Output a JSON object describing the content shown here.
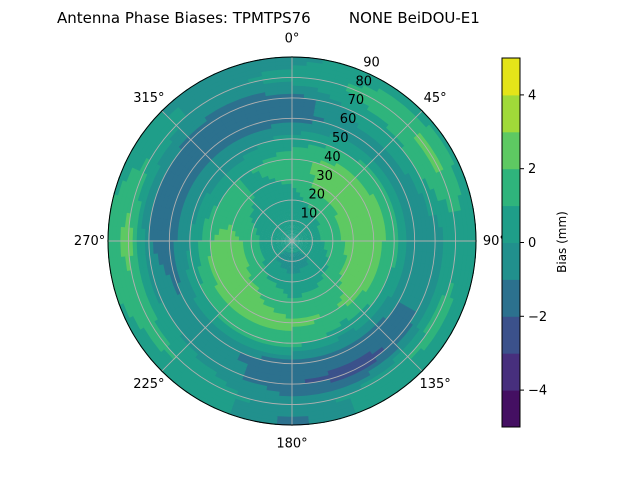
{
  "chart_data": {
    "type": "heatmap",
    "subtype": "polar-filled-contour",
    "title": "Antenna Phase Biases: TPMTPS76        NONE BeiDOU-E1",
    "theta_direction": "clockwise",
    "theta_zero": "north",
    "theta_ticks": [
      "0°",
      "45°",
      "90°",
      "135°",
      "180°",
      "225°",
      "270°",
      "315°"
    ],
    "theta_tick_values": [
      0,
      45,
      90,
      135,
      180,
      225,
      270,
      315
    ],
    "r_ticks": [
      "10",
      "20",
      "30",
      "40",
      "50",
      "60",
      "70",
      "80",
      "90"
    ],
    "r_tick_values": [
      10,
      20,
      30,
      40,
      50,
      60,
      70,
      80,
      90
    ],
    "rlim": [
      0,
      90
    ],
    "grid": true,
    "azimuth": [
      0,
      30,
      60,
      90,
      120,
      150,
      180,
      210,
      240,
      270,
      300,
      330
    ],
    "zenith": [
      0,
      10,
      20,
      30,
      40,
      50,
      60,
      70,
      80,
      90
    ],
    "values": [
      [
        0.5,
        0.5,
        0.5,
        0.5,
        0.5,
        0.5,
        0.5,
        0.5,
        0.5,
        0.5,
        0.5,
        0.5
      ],
      [
        0.5,
        0.5,
        0.5,
        0.5,
        0.3,
        -0.3,
        -0.5,
        -0.3,
        0.3,
        0.5,
        0.5,
        0.5
      ],
      [
        0.5,
        1.2,
        1.5,
        1.5,
        1.0,
        0.5,
        0.3,
        0.8,
        1.5,
        1.5,
        0.8,
        0.5
      ],
      [
        1.2,
        2.5,
        2.5,
        2.5,
        2.2,
        1.5,
        1.2,
        2.0,
        2.5,
        2.5,
        1.5,
        0.8
      ],
      [
        1.5,
        2.5,
        2.5,
        2.5,
        2.5,
        2.0,
        2.2,
        2.5,
        2.5,
        2.0,
        1.0,
        1.0
      ],
      [
        0.5,
        1.0,
        1.5,
        1.5,
        1.0,
        0.5,
        1.5,
        1.5,
        1.0,
        0.0,
        -0.5,
        -0.5
      ],
      [
        -1.5,
        -0.5,
        -1.0,
        -1.0,
        -1.0,
        -1.5,
        -1.5,
        -1.0,
        -1.0,
        -1.5,
        -1.5,
        -1.5
      ],
      [
        -1.5,
        0.5,
        1.0,
        -0.5,
        -1.0,
        -2.5,
        -2.0,
        -0.5,
        0.0,
        -1.0,
        -1.0,
        -1.5
      ],
      [
        0.5,
        1.5,
        2.5,
        0.5,
        1.5,
        0.5,
        -0.5,
        0.5,
        1.5,
        2.5,
        1.0,
        -0.5
      ],
      [
        -0.5,
        0.5,
        0.5,
        0.5,
        0.5,
        0.5,
        -1.5,
        0.5,
        0.5,
        1.5,
        0.5,
        -0.5
      ]
    ],
    "colorbar": {
      "label": "Bias (mm)",
      "levels": [
        -5,
        -4,
        -3,
        -2,
        -1,
        0,
        1,
        2,
        3,
        4,
        5
      ],
      "ticks": [
        "−4",
        "−2",
        "0",
        "2",
        "4"
      ],
      "tick_values": [
        -4,
        -2,
        0,
        2,
        4
      ],
      "colormap": "viridis",
      "colors": [
        "#440f62",
        "#472f7d",
        "#3b518b",
        "#2c718e",
        "#21908d",
        "#1f9e89",
        "#2fb47c",
        "#5ec962",
        "#a0da39",
        "#e4e419"
      ]
    }
  }
}
